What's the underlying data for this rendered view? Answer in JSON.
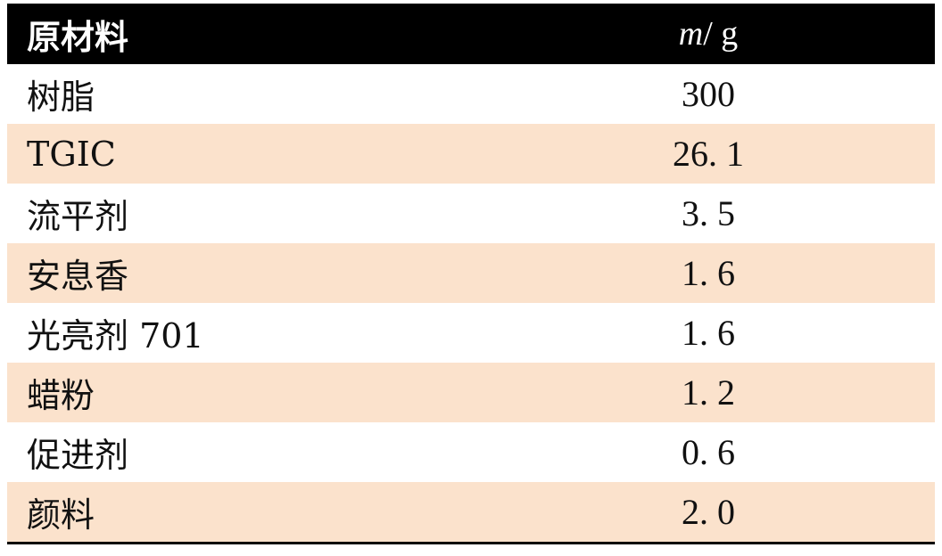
{
  "table": {
    "header": {
      "material_label": "原材料",
      "mass_symbol": "m",
      "mass_unit": "/ g"
    },
    "rows": [
      {
        "material": "树脂",
        "mass": "300"
      },
      {
        "material": "TGIC",
        "mass": "26. 1"
      },
      {
        "material": "流平剂",
        "mass": "3. 5"
      },
      {
        "material": "安息香",
        "mass": "1. 6"
      },
      {
        "material": "光亮剂 701",
        "mass": "1. 6"
      },
      {
        "material": "蜡粉",
        "mass": "1. 2"
      },
      {
        "material": "促进剂",
        "mass": "0. 6"
      },
      {
        "material": "颜料",
        "mass": "2. 0"
      }
    ]
  },
  "colors": {
    "header_bg": "#000000",
    "header_text": "#ffffff",
    "stripe_bg": "#fbe2cc",
    "plain_bg": "#ffffff"
  }
}
